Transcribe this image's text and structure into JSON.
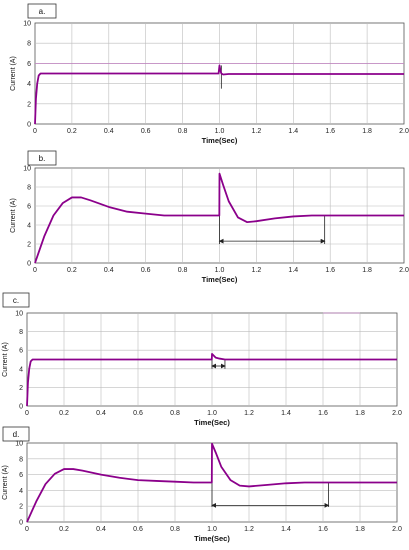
{
  "chart_data": [
    {
      "type": "line",
      "panel_label": "a.",
      "xlabel": "Time(Sec)",
      "ylabel": "Current (A)",
      "xlim": [
        0,
        2.0
      ],
      "ylim": [
        0,
        10
      ],
      "xticks": [
        "0",
        "0.2",
        "0.4",
        "0.6",
        "0.8",
        "1.0",
        "1.2",
        "1.4",
        "1.6",
        "1.8",
        "2.0"
      ],
      "yticks": [
        "0",
        "2",
        "4",
        "6",
        "8",
        "10"
      ],
      "grid": true,
      "series": [
        {
          "color": "#8b008b",
          "x": [
            0,
            0.005,
            0.012,
            0.02,
            0.03,
            0.05,
            0.2,
            0.5,
            0.8,
            0.995,
            1.0,
            1.005,
            1.01,
            1.02,
            1.05,
            1.4,
            1.8,
            2.0
          ],
          "y": [
            0,
            2.5,
            4.0,
            4.8,
            5.0,
            5.0,
            5.0,
            5.0,
            5.0,
            5.0,
            5.8,
            5.3,
            5.0,
            4.9,
            4.95,
            4.95,
            4.95,
            4.95
          ]
        }
      ],
      "reference_lines": [
        {
          "y": 6.0,
          "x0": 0.0,
          "x1": 2.0
        }
      ],
      "annotations": [
        {
          "type": "vline",
          "x": 1.01,
          "y0": 3.5,
          "y1": 5.8
        }
      ]
    },
    {
      "type": "line",
      "panel_label": "b.",
      "xlabel": "Time(Sec)",
      "ylabel": "Current (A)",
      "xlim": [
        0,
        2.0
      ],
      "ylim": [
        0,
        10
      ],
      "xticks": [
        "0",
        "0.2",
        "0.4",
        "0.6",
        "0.8",
        "1.0",
        "1.2",
        "1.4",
        "1.6",
        "1.8",
        "2.0"
      ],
      "yticks": [
        "0",
        "2",
        "4",
        "6",
        "8",
        "10"
      ],
      "grid": true,
      "series": [
        {
          "color": "#8b008b",
          "x": [
            0,
            0.05,
            0.1,
            0.15,
            0.2,
            0.25,
            0.3,
            0.4,
            0.5,
            0.6,
            0.7,
            0.8,
            0.9,
            0.999,
            1.0,
            1.02,
            1.05,
            1.1,
            1.15,
            1.2,
            1.3,
            1.4,
            1.5,
            1.6,
            1.8,
            2.0
          ],
          "y": [
            0,
            2.8,
            5.0,
            6.3,
            6.9,
            6.9,
            6.6,
            5.9,
            5.4,
            5.2,
            5.0,
            5.0,
            5.0,
            5.0,
            9.4,
            8.2,
            6.5,
            4.8,
            4.3,
            4.4,
            4.7,
            4.9,
            5.0,
            5.0,
            5.0,
            5.0
          ]
        }
      ],
      "reference_lines": [],
      "annotations": [
        {
          "type": "arrow",
          "x0": 1.0,
          "x1": 1.57,
          "y": 2.3
        },
        {
          "type": "vline",
          "x": 1.0,
          "y0": 2.0,
          "y1": 9.4
        },
        {
          "type": "vline",
          "x": 1.57,
          "y0": 2.0,
          "y1": 5.0
        }
      ]
    },
    {
      "type": "line",
      "panel_label": "c.",
      "xlabel": "Time(Sec)",
      "ylabel": "Current (A)",
      "xlim": [
        0,
        2.0
      ],
      "ylim": [
        0,
        10
      ],
      "xticks": [
        "0",
        "0.2",
        "0.4",
        "0.6",
        "0.8",
        "1.0",
        "1.2",
        "1.4",
        "1.6",
        "1.8",
        "2.0"
      ],
      "yticks": [
        "0",
        "2",
        "4",
        "6",
        "8",
        "10"
      ],
      "grid": true,
      "series": [
        {
          "color": "#8b008b",
          "x": [
            0,
            0.005,
            0.012,
            0.02,
            0.03,
            0.05,
            0.5,
            0.999,
            1.0,
            1.01,
            1.02,
            1.04,
            1.07,
            1.4,
            2.0
          ],
          "y": [
            0,
            2.5,
            4.0,
            4.8,
            5.0,
            5.0,
            5.0,
            5.0,
            5.6,
            5.4,
            5.2,
            5.1,
            5.0,
            5.0,
            5.0
          ]
        }
      ],
      "reference_lines": [
        {
          "y": 10.0,
          "x0": 1.6,
          "x1": 1.8
        }
      ],
      "annotations": [
        {
          "type": "arrow",
          "x0": 1.0,
          "x1": 1.07,
          "y": 4.3
        },
        {
          "type": "vline",
          "x": 1.0,
          "y0": 4.0,
          "y1": 5.6
        },
        {
          "type": "vline",
          "x": 1.07,
          "y0": 4.0,
          "y1": 5.0
        }
      ]
    },
    {
      "type": "line",
      "panel_label": "d.",
      "xlabel": "Time(Sec)",
      "ylabel": "Current (A)",
      "xlim": [
        0,
        2.0
      ],
      "ylim": [
        0,
        10
      ],
      "xticks": [
        "0",
        "0.2",
        "0.4",
        "0.6",
        "0.8",
        "1.0",
        "1.2",
        "1.4",
        "1.6",
        "1.8",
        "2.0"
      ],
      "yticks": [
        "0",
        "2",
        "4",
        "6",
        "8",
        "10"
      ],
      "grid": true,
      "series": [
        {
          "color": "#8b008b",
          "x": [
            0,
            0.05,
            0.1,
            0.15,
            0.2,
            0.25,
            0.3,
            0.4,
            0.5,
            0.6,
            0.7,
            0.8,
            0.9,
            0.999,
            1.0,
            1.02,
            1.05,
            1.1,
            1.15,
            1.2,
            1.3,
            1.4,
            1.5,
            1.6,
            1.8,
            2.0
          ],
          "y": [
            0,
            2.6,
            4.8,
            6.1,
            6.7,
            6.7,
            6.5,
            6.0,
            5.6,
            5.3,
            5.2,
            5.1,
            5.0,
            5.0,
            9.9,
            8.8,
            7.0,
            5.3,
            4.6,
            4.5,
            4.7,
            4.9,
            5.0,
            5.0,
            5.0,
            5.0
          ]
        }
      ],
      "reference_lines": [],
      "annotations": [
        {
          "type": "arrow",
          "x0": 1.0,
          "x1": 1.63,
          "y": 2.1
        },
        {
          "type": "vline",
          "x": 1.0,
          "y0": 1.9,
          "y1": 9.9
        },
        {
          "type": "vline",
          "x": 1.63,
          "y0": 1.9,
          "y1": 5.0
        }
      ]
    }
  ]
}
